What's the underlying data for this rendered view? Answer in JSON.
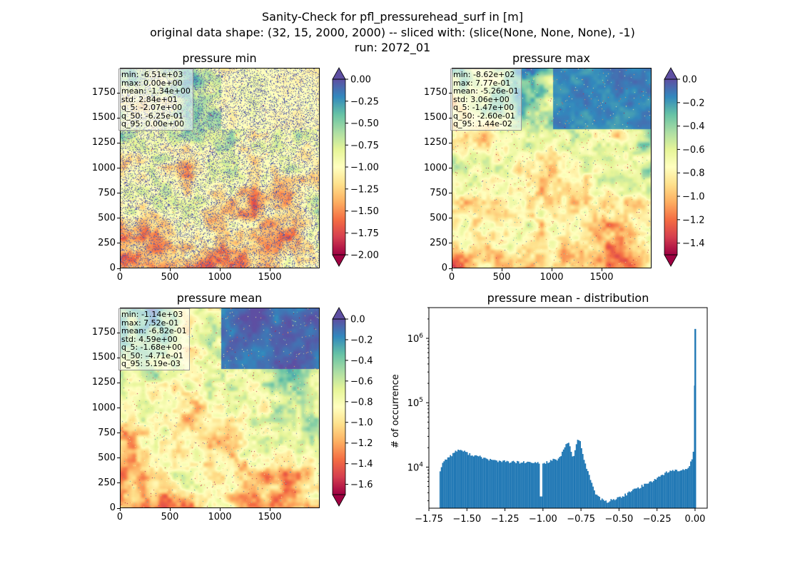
{
  "figure": {
    "title_line1": "Sanity-Check for pfl_pressurehead_surf in [m]",
    "title_line2": "original data shape: (32, 15, 2000, 2000) -- sliced with: (slice(None, None, None), -1)",
    "title_line3": "run: 2072_01"
  },
  "colormap_palette": [
    "#9e0142",
    "#d53e4f",
    "#f46d43",
    "#fdae61",
    "#fee08b",
    "#ffffbf",
    "#e6f598",
    "#abdda4",
    "#66c2a5",
    "#3288bd",
    "#5e4fa2"
  ],
  "chart_data": [
    {
      "type": "heatmap",
      "title": "pressure min",
      "xticks": [
        "0",
        "500",
        "1000",
        "1500"
      ],
      "yticks": [
        "0",
        "250",
        "500",
        "750",
        "1000",
        "1250",
        "1500",
        "1750"
      ],
      "extent": [
        0,
        2000
      ],
      "colorbar": {
        "ticks": [
          "0.00",
          "−0.25",
          "−0.50",
          "−0.75",
          "−1.00",
          "−1.25",
          "−1.50",
          "−1.75",
          "−2.00"
        ],
        "vmin": -2.0,
        "vmax": 0.0,
        "extend": "both"
      },
      "stats": [
        "min: -6.51e+03",
        "max: 0.00e+00",
        "mean: -1.34e+00",
        "std: 2.84e+01",
        "q_5: -2.07e+00",
        "q_50: -6.25e-01",
        "q_95: 0.00e+00"
      ]
    },
    {
      "type": "heatmap",
      "title": "pressure max",
      "xticks": [
        "0",
        "500",
        "1000",
        "1500"
      ],
      "yticks": [
        "0",
        "250",
        "500",
        "750",
        "1000",
        "1250",
        "1500",
        "1750"
      ],
      "extent": [
        0,
        2000
      ],
      "colorbar": {
        "ticks": [
          "0.0",
          "−0.2",
          "−0.4",
          "−0.6",
          "−0.8",
          "−1.0",
          "−1.2",
          "−1.4"
        ],
        "vmin": -1.5,
        "vmax": 0.0,
        "extend": "both"
      },
      "stats": [
        "min: -8.62e+02",
        "max: 7.77e-01",
        "mean: -5.26e-01",
        "std: 3.06e+00",
        "q_5: -1.47e+00",
        "q_50: -2.60e-01",
        "q_95: 1.44e-02"
      ]
    },
    {
      "type": "heatmap",
      "title": "pressure mean",
      "xticks": [
        "0",
        "500",
        "1000",
        "1500"
      ],
      "yticks": [
        "0",
        "250",
        "500",
        "750",
        "1000",
        "1250",
        "1500",
        "1750"
      ],
      "extent": [
        0,
        2000
      ],
      "colorbar": {
        "ticks": [
          "0.0",
          "−0.2",
          "−0.4",
          "−0.6",
          "−0.8",
          "−1.0",
          "−1.2",
          "−1.4",
          "−1.6"
        ],
        "vmin": -1.7,
        "vmax": 0.0,
        "extend": "both"
      },
      "stats": [
        "min: -1.14e+03",
        "max: 7.52e-01",
        "mean: -6.82e-01",
        "std: 4.59e+00",
        "q_5: -1.68e+00",
        "q_50: -4.71e-01",
        "q_95: 5.19e-03"
      ]
    },
    {
      "type": "bar",
      "title": "pressure mean - distribution",
      "ylabel": "# of occurrence",
      "yscale": "log",
      "ylim": [
        2300,
        3000000
      ],
      "xlim": [
        -1.75,
        0.08
      ],
      "xticks": [
        "−1.75",
        "−1.50",
        "−1.25",
        "−1.00",
        "−0.75",
        "−0.50",
        "−0.25",
        "0.00"
      ],
      "xtick_values": [
        -1.75,
        -1.5,
        -1.25,
        -1.0,
        -0.75,
        -0.5,
        -0.25,
        0.0
      ],
      "yticks": [
        "10",
        "10",
        "10"
      ],
      "ytick_exponents": [
        "4",
        "5",
        "6"
      ],
      "ytick_values": [
        10000,
        100000,
        1000000
      ],
      "color": "#1f77b4",
      "bin_edges_start": -1.68,
      "bin_width": 0.00845,
      "counts_knots_x": [
        -1.68,
        -1.672,
        -1.665,
        -1.655,
        -1.64,
        -1.62,
        -1.6,
        -1.58,
        -1.56,
        -1.54,
        -1.52,
        -1.5,
        -1.48,
        -1.45,
        -1.4,
        -1.35,
        -1.3,
        -1.25,
        -1.2,
        -1.15,
        -1.1,
        -1.05,
        -1.02,
        -1.0,
        -0.98,
        -0.96,
        -0.94,
        -0.92,
        -0.9,
        -0.88,
        -0.86,
        -0.84,
        -0.83,
        -0.82,
        -0.81,
        -0.8,
        -0.79,
        -0.78,
        -0.77,
        -0.76,
        -0.75,
        -0.74,
        -0.72,
        -0.7,
        -0.68,
        -0.66,
        -0.64,
        -0.62,
        -0.6,
        -0.58,
        -0.56,
        -0.54,
        -0.52,
        -0.5,
        -0.48,
        -0.45,
        -0.42,
        -0.4,
        -0.37,
        -0.34,
        -0.3,
        -0.26,
        -0.22,
        -0.18,
        -0.14,
        -0.1,
        -0.07,
        -0.05,
        -0.035,
        -0.02,
        -0.012,
        -0.006,
        -0.003,
        0.0
      ],
      "counts_knots_y": [
        8800,
        8800,
        11000,
        12000,
        13000,
        14500,
        15500,
        17000,
        18500,
        18500,
        17500,
        16500,
        16000,
        15000,
        14200,
        13000,
        12500,
        12200,
        12000,
        11800,
        11800,
        11500,
        11800,
        11300,
        11800,
        12300,
        12800,
        13200,
        12800,
        15000,
        20000,
        23500,
        24000,
        20000,
        16500,
        14000,
        17000,
        22000,
        26500,
        27000,
        22000,
        16000,
        11000,
        8000,
        5800,
        4200,
        3500,
        3200,
        3000,
        2900,
        3000,
        3200,
        3200,
        3300,
        3500,
        3800,
        4200,
        4500,
        4800,
        5200,
        5800,
        6500,
        7500,
        8500,
        8800,
        8800,
        9000,
        9500,
        11000,
        13500,
        17000,
        25000,
        150000,
        1400000
      ]
    }
  ]
}
